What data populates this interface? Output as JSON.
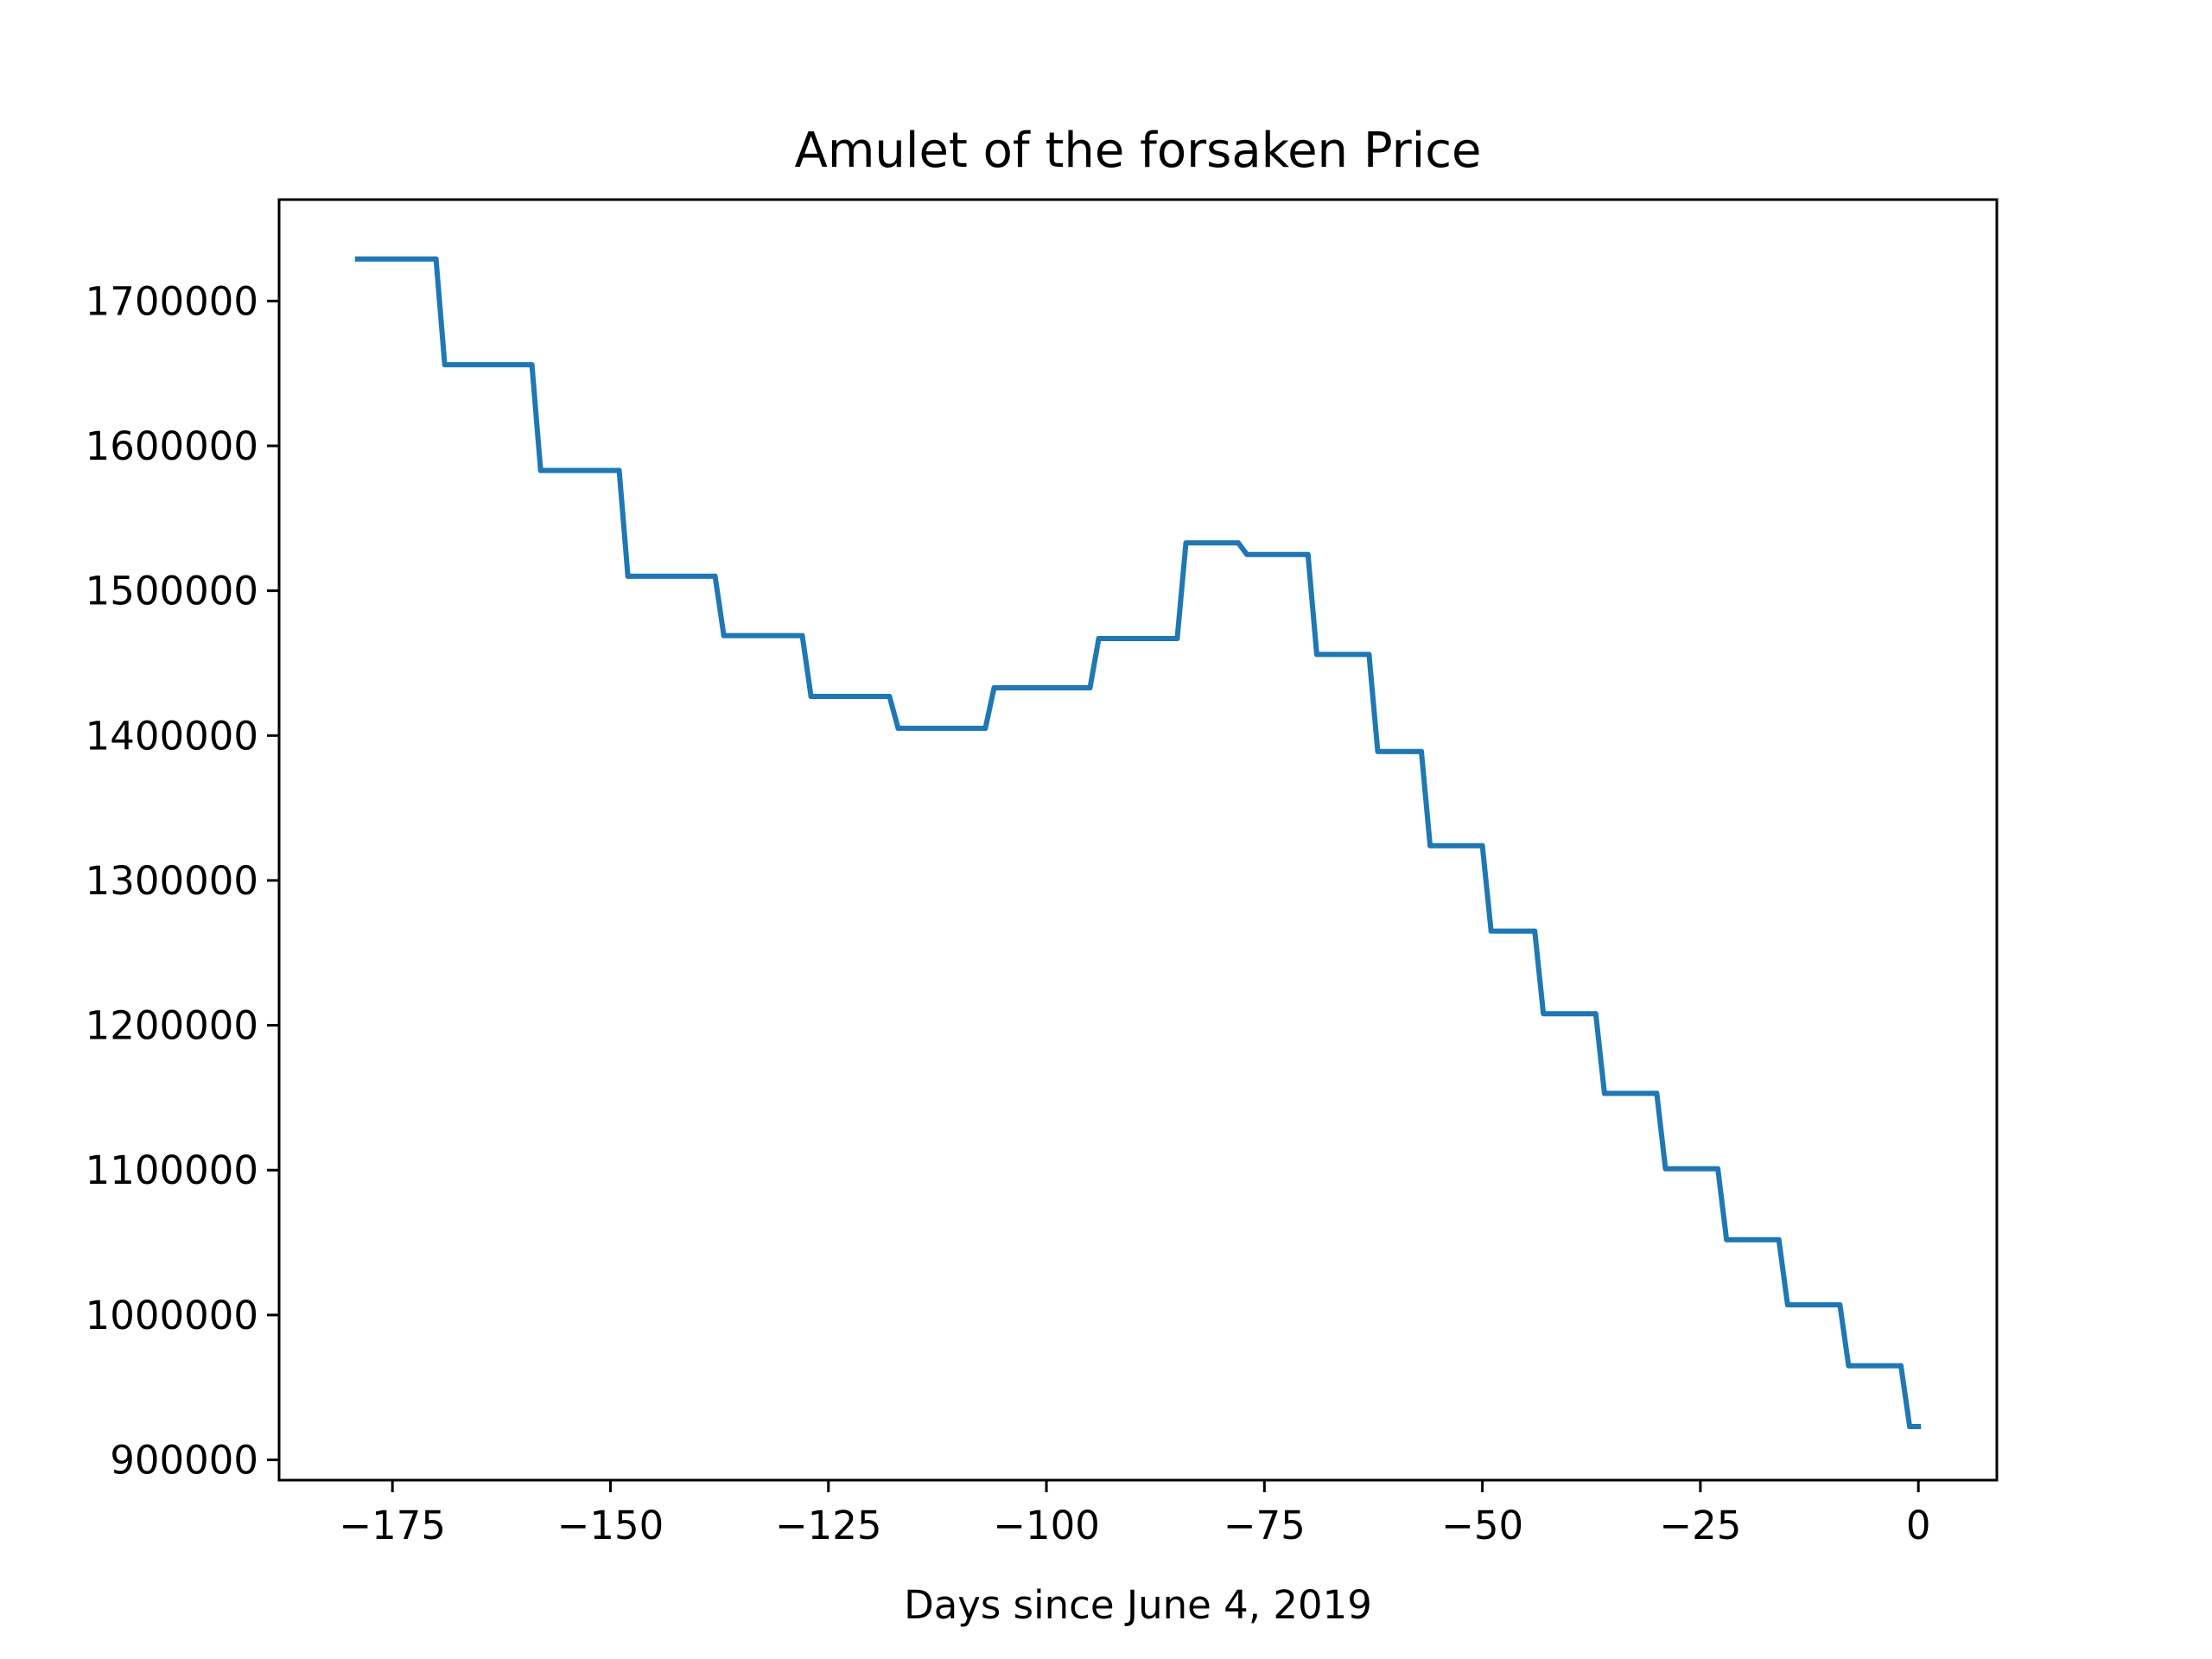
{
  "chart_data": {
    "type": "line",
    "title": "Amulet of the forsaken Price",
    "xlabel": "Days since June 4, 2019",
    "ylabel": "",
    "xlim": [
      -188,
      9
    ],
    "ylim": [
      886000,
      1770000
    ],
    "xticks": [
      -175,
      -150,
      -125,
      -100,
      -75,
      -50,
      -25,
      0
    ],
    "xtick_labels": [
      "−175",
      "−150",
      "−125",
      "−100",
      "−75",
      "−50",
      "−25",
      "0"
    ],
    "yticks": [
      900000,
      1000000,
      1100000,
      1200000,
      1300000,
      1400000,
      1500000,
      1600000,
      1700000
    ],
    "ytick_labels": [
      "900000",
      "1000000",
      "1100000",
      "1200000",
      "1300000",
      "1400000",
      "1500000",
      "1600000",
      "1700000"
    ],
    "grid": false,
    "series": [
      {
        "color": "#1f77b4",
        "x": [
          -179,
          -170,
          -169,
          -159,
          -158,
          -149,
          -148,
          -138,
          -137,
          -128,
          -127,
          -118,
          -117,
          -107,
          -106,
          -95,
          -94,
          -85,
          -84,
          -78,
          -77,
          -70,
          -69,
          -63,
          -62,
          -57,
          -56,
          -50,
          -49,
          -44,
          -43,
          -37,
          -36,
          -30,
          -29,
          -23,
          -22,
          -16,
          -15,
          -9,
          -8,
          -2,
          -1,
          0
        ],
        "y": [
          1729000,
          1729000,
          1656000,
          1656000,
          1583000,
          1583000,
          1510000,
          1510000,
          1469000,
          1469000,
          1427000,
          1427000,
          1405000,
          1405000,
          1433000,
          1433000,
          1467000,
          1467000,
          1533000,
          1533000,
          1525000,
          1525000,
          1456000,
          1456000,
          1389000,
          1389000,
          1324000,
          1324000,
          1265000,
          1265000,
          1208000,
          1208000,
          1153000,
          1153000,
          1101000,
          1101000,
          1052000,
          1052000,
          1007000,
          1007000,
          965000,
          965000,
          923000,
          923000
        ]
      }
    ]
  }
}
